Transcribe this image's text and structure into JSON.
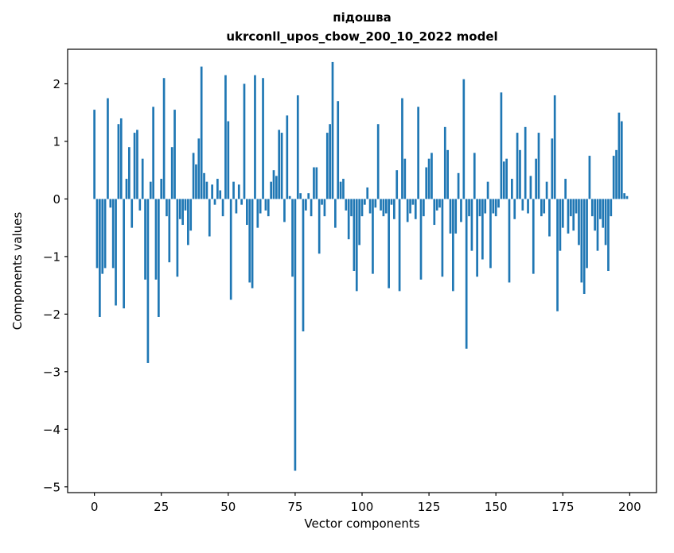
{
  "chart_data": {
    "type": "bar",
    "title_line1": "підошва",
    "title_line2": "ukrconll_upos_cbow_200_10_2022 model",
    "xlabel": "Vector components",
    "ylabel": "Components values",
    "xlim": [
      -10,
      210
    ],
    "ylim": [
      -5.1,
      2.6
    ],
    "xticks": [
      0,
      25,
      50,
      75,
      100,
      125,
      150,
      175,
      200
    ],
    "yticks": [
      -5,
      -4,
      -3,
      -2,
      -1,
      0,
      1,
      2
    ],
    "grid": false,
    "legend": "none",
    "bar_color": "#1f77b4",
    "axis_color": "#000000",
    "background": "#ffffff",
    "values": [
      1.55,
      -1.2,
      -2.05,
      -1.3,
      -1.2,
      1.75,
      -0.15,
      -1.2,
      -1.85,
      1.3,
      1.4,
      -1.9,
      0.35,
      0.9,
      -0.5,
      1.15,
      1.2,
      -0.2,
      0.7,
      -1.4,
      -2.85,
      0.3,
      1.6,
      -1.4,
      -2.05,
      0.35,
      2.1,
      -0.3,
      -1.1,
      0.9,
      1.55,
      -1.35,
      -0.35,
      -0.45,
      -0.2,
      -0.8,
      -0.55,
      0.8,
      0.6,
      1.05,
      2.3,
      0.45,
      0.3,
      -0.65,
      0.25,
      -0.1,
      0.35,
      0.15,
      -0.3,
      2.15,
      1.35,
      -1.75,
      0.3,
      -0.25,
      0.25,
      -0.1,
      2.0,
      -0.45,
      -1.45,
      -1.55,
      2.15,
      -0.5,
      -0.25,
      2.1,
      -0.2,
      -0.3,
      0.3,
      0.5,
      0.4,
      1.2,
      1.15,
      -0.4,
      1.45,
      0.05,
      -1.35,
      -4.72,
      1.8,
      0.1,
      -2.3,
      -0.2,
      0.1,
      -0.3,
      0.55,
      0.55,
      -0.95,
      -0.1,
      -0.3,
      1.15,
      1.3,
      2.38,
      -0.5,
      1.7,
      0.3,
      0.35,
      -0.2,
      -0.7,
      -0.3,
      -1.25,
      -1.6,
      -0.8,
      -0.3,
      -0.1,
      0.2,
      -0.25,
      -1.3,
      -0.15,
      1.3,
      -0.2,
      -0.3,
      -0.25,
      -1.55,
      -0.1,
      -0.35,
      0.5,
      -1.6,
      1.75,
      0.7,
      -0.4,
      -0.25,
      -0.1,
      -0.35,
      1.6,
      -1.4,
      -0.3,
      0.55,
      0.7,
      0.8,
      -0.45,
      -0.2,
      -0.15,
      -1.35,
      1.25,
      0.85,
      -0.6,
      -1.6,
      -0.6,
      0.45,
      -0.4,
      2.08,
      -2.6,
      -0.3,
      -0.9,
      0.8,
      -1.35,
      -0.3,
      -1.05,
      -0.25,
      0.3,
      -1.2,
      -0.25,
      -0.3,
      -0.15,
      1.85,
      0.65,
      0.7,
      -1.45,
      0.35,
      -0.35,
      1.15,
      0.85,
      -0.2,
      1.25,
      -0.25,
      0.4,
      -1.3,
      0.7,
      1.15,
      -0.3,
      -0.25,
      0.3,
      -0.65,
      1.05,
      1.8,
      -1.95,
      -0.9,
      -0.5,
      0.35,
      -0.6,
      -0.3,
      -0.55,
      -0.25,
      -0.8,
      -1.45,
      -1.65,
      -1.2,
      0.75,
      -0.3,
      -0.55,
      -0.9,
      -0.35,
      -0.5,
      -0.8,
      -1.25,
      -0.3,
      0.75,
      0.85,
      1.5,
      1.35,
      0.1,
      0.05
    ]
  }
}
